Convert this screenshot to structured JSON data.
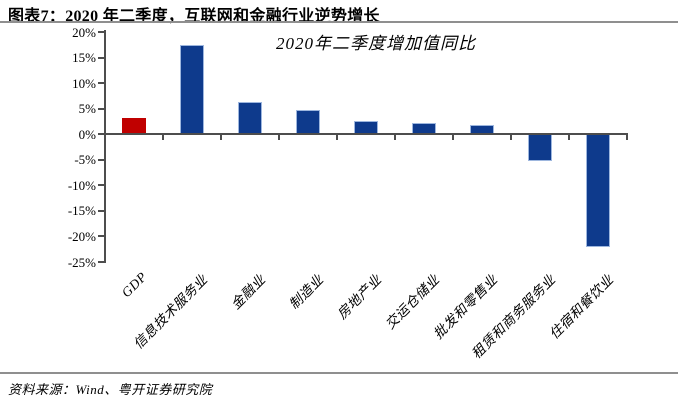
{
  "header": {
    "title": "图表7：2020 年二季度，互联网和金融行业逆势增长"
  },
  "chart_data": {
    "type": "bar",
    "title": "2020年二季度增加值同比",
    "categories": [
      "GDP",
      "信息技术服务业",
      "金融业",
      "制造业",
      "房地产业",
      "交运仓储业",
      "批发和零售业",
      "租赁和商务服务业",
      "住宿和餐饮业"
    ],
    "values": [
      3.2,
      17.5,
      6.3,
      4.7,
      2.6,
      2.2,
      1.8,
      -5.2,
      -22.0
    ],
    "unit": "%",
    "xlabel": "",
    "ylabel": "",
    "y_ticks": [
      "20%",
      "15%",
      "10%",
      "5%",
      "0%",
      "-5%",
      "-10%",
      "-15%",
      "-20%",
      "-25%"
    ],
    "ylim": [
      -25,
      20
    ],
    "grid": false,
    "legend": "none",
    "bar_fill_colors": [
      "#C00000",
      "#0E3A8C",
      "#0E3A8C",
      "#0E3A8C",
      "#0E3A8C",
      "#0E3A8C",
      "#0E3A8C",
      "#0E3A8C",
      "#0E3A8C"
    ],
    "bar_border_colors": [
      "#C00000",
      "#9DB6DE",
      "#9DB6DE",
      "#9DB6DE",
      "#9DB6DE",
      "#9DB6DE",
      "#9DB6DE",
      "#9DB6DE",
      "#9DB6DE"
    ],
    "axis_color": "#4d4d4d",
    "highlight_note": "GDP bar highlighted in red"
  },
  "footer": {
    "source": "资料来源：Wind、粤开证券研究院"
  }
}
